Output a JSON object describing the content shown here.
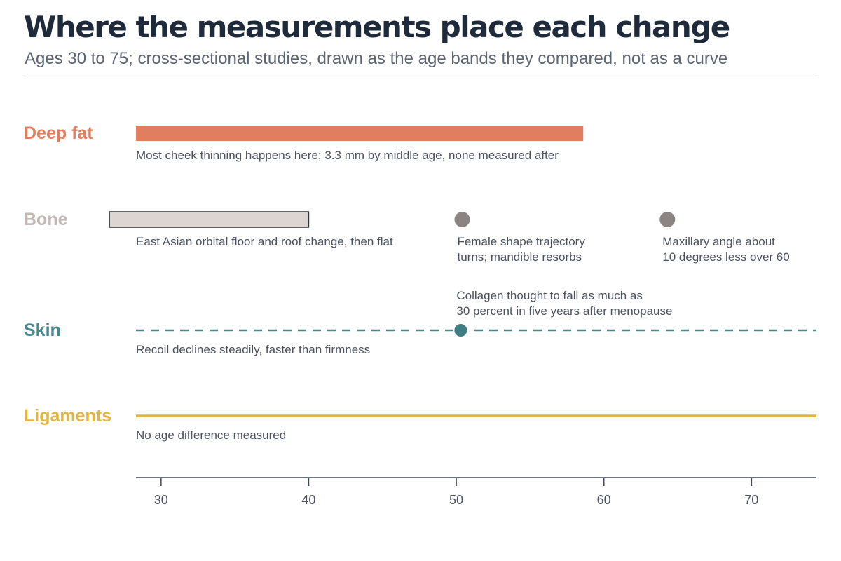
{
  "header": {
    "title": "Where the measurements place each change",
    "subtitle": "Ages 30 to 75; cross-sectional studies, drawn as the age bands they compared, not as a curve"
  },
  "chart_data": {
    "type": "timeline",
    "title": "Where the measurements place each change",
    "subtitle": "Ages 30 to 75; cross-sectional studies, drawn as the age bands they compared, not as a curve",
    "x_axis": {
      "min": 28.3,
      "max": 74.4,
      "ticks": [
        30,
        40,
        50,
        60,
        70
      ],
      "label": ""
    },
    "grid": false,
    "rows": [
      {
        "name": "Deep fat",
        "color": "#e07e5f",
        "marks": [
          {
            "kind": "band",
            "start": 28.3,
            "end": 58.6,
            "style": "filled",
            "note": [
              "Most cheek thinning happens here; 3.3 mm by middle age, none measured after"
            ]
          }
        ]
      },
      {
        "name": "Bone",
        "color": "#c2b9b5",
        "marks": [
          {
            "kind": "band",
            "start": 26.5,
            "end": 40.0,
            "style": "outlined",
            "note": [
              "East Asian orbital floor and roof change, then flat"
            ]
          },
          {
            "kind": "point",
            "at": 50.4,
            "color": "#8c8482",
            "note": [
              "Female shape trajectory",
              "turns; mandible resorbs"
            ]
          },
          {
            "kind": "point",
            "at": 64.3,
            "color": "#8c8482",
            "note": [
              "Maxillary angle about",
              "10 degrees less over 60"
            ]
          }
        ]
      },
      {
        "name": "Skin",
        "color": "#4a8a8e",
        "marks": [
          {
            "kind": "line",
            "start": 28.3,
            "end": 74.4,
            "style": "dashed",
            "note": [
              "Recoil declines steadily, faster than firmness"
            ]
          },
          {
            "kind": "point",
            "at": 50.3,
            "color": "#3f7f84",
            "note": [
              "Collagen thought to fall as much as",
              "30 percent in five years after menopause"
            ]
          }
        ]
      },
      {
        "name": "Ligaments",
        "color": "#e5b43f",
        "marks": [
          {
            "kind": "line",
            "start": 28.3,
            "end": 74.4,
            "style": "solid",
            "note": [
              "No age difference measured"
            ]
          }
        ]
      }
    ]
  }
}
